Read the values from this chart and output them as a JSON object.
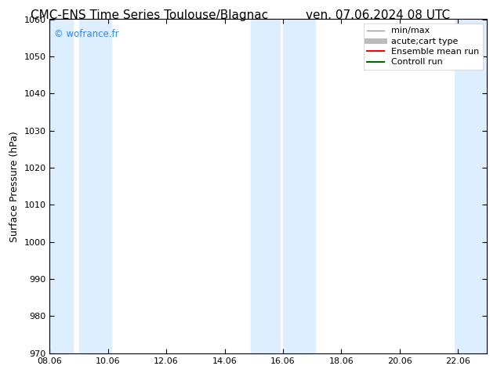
{
  "title_left": "CMC-ENS Time Series Toulouse/Blagnac",
  "title_right": "ven. 07.06.2024 08 UTC",
  "ylabel": "Surface Pressure (hPa)",
  "ylim": [
    970,
    1060
  ],
  "yticks": [
    970,
    980,
    990,
    1000,
    1010,
    1020,
    1030,
    1040,
    1050,
    1060
  ],
  "xlim": [
    0,
    15
  ],
  "xtick_labels": [
    "08.06",
    "10.06",
    "12.06",
    "14.06",
    "16.06",
    "18.06",
    "20.06",
    "22.06"
  ],
  "xtick_positions": [
    0,
    2,
    4,
    6,
    8,
    10,
    12,
    14
  ],
  "watermark": "© wofrance.fr",
  "watermark_color": "#3388ee",
  "bg_color": "#ffffff",
  "plot_bg_color": "#ffffff",
  "shaded_bands": [
    {
      "x_start": -0.1,
      "x_end": 0.8,
      "color": "#ddeeff"
    },
    {
      "x_start": 1.0,
      "x_end": 2.1,
      "color": "#ddeeff"
    },
    {
      "x_start": 6.9,
      "x_end": 7.9,
      "color": "#ddeeff"
    },
    {
      "x_start": 8.0,
      "x_end": 9.1,
      "color": "#ddeeff"
    },
    {
      "x_start": 13.9,
      "x_end": 15.1,
      "color": "#ddeeff"
    }
  ],
  "legend_entries": [
    {
      "label": "min/max",
      "color": "#999999",
      "lw": 1.0
    },
    {
      "label": "acute;cart type",
      "color": "#bbbbbb",
      "lw": 5
    },
    {
      "label": "Ensemble mean run",
      "color": "#ff0000",
      "lw": 1.5
    },
    {
      "label": "Controll run",
      "color": "#006600",
      "lw": 1.5
    }
  ],
  "title_fontsize": 11,
  "axis_label_fontsize": 9,
  "tick_fontsize": 8,
  "legend_fontsize": 8
}
